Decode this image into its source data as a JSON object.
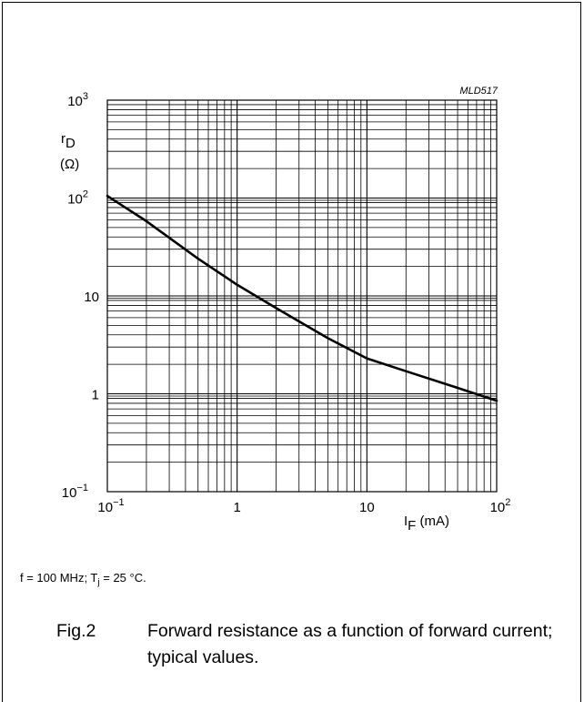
{
  "chart_data": {
    "type": "line",
    "code": "MLD517",
    "xscale": "log",
    "yscale": "log",
    "xlim": [
      0.1,
      100
    ],
    "ylim": [
      0.1,
      1000
    ],
    "grid": true,
    "x_ticks": [
      {
        "value": 0.1,
        "base": "10",
        "exp": "−1"
      },
      {
        "value": 1,
        "base": "1",
        "exp": ""
      },
      {
        "value": 10,
        "base": "10",
        "exp": ""
      },
      {
        "value": 100,
        "base": "10",
        "exp": "2"
      }
    ],
    "y_ticks": [
      {
        "value": 0.1,
        "base": "10",
        "exp": "−1"
      },
      {
        "value": 1,
        "base": "1",
        "exp": ""
      },
      {
        "value": 10,
        "base": "10",
        "exp": ""
      },
      {
        "value": 100,
        "base": "10",
        "exp": "2"
      },
      {
        "value": 1000,
        "base": "10",
        "exp": "3"
      }
    ],
    "xlabel": {
      "main": "I",
      "sub": "F",
      "unit": " (mA)"
    },
    "ylabel": {
      "line1": "r",
      "line1_sub": "D",
      "line2": "(Ω)"
    },
    "series": [
      {
        "color": "#000000",
        "x": [
          0.1,
          0.2,
          0.5,
          1,
          2,
          5,
          10,
          20,
          50,
          100
        ],
        "y": [
          105,
          58,
          24,
          13,
          7.5,
          3.7,
          2.3,
          1.7,
          1.15,
          0.85
        ]
      }
    ]
  },
  "conditions": {
    "prefix": "f = 100 MHz; T",
    "sub": "j",
    "suffix": " = 25 °C."
  },
  "caption": {
    "fig": "Fig.2",
    "text": "Forward resistance as a function of forward current; typical values."
  }
}
